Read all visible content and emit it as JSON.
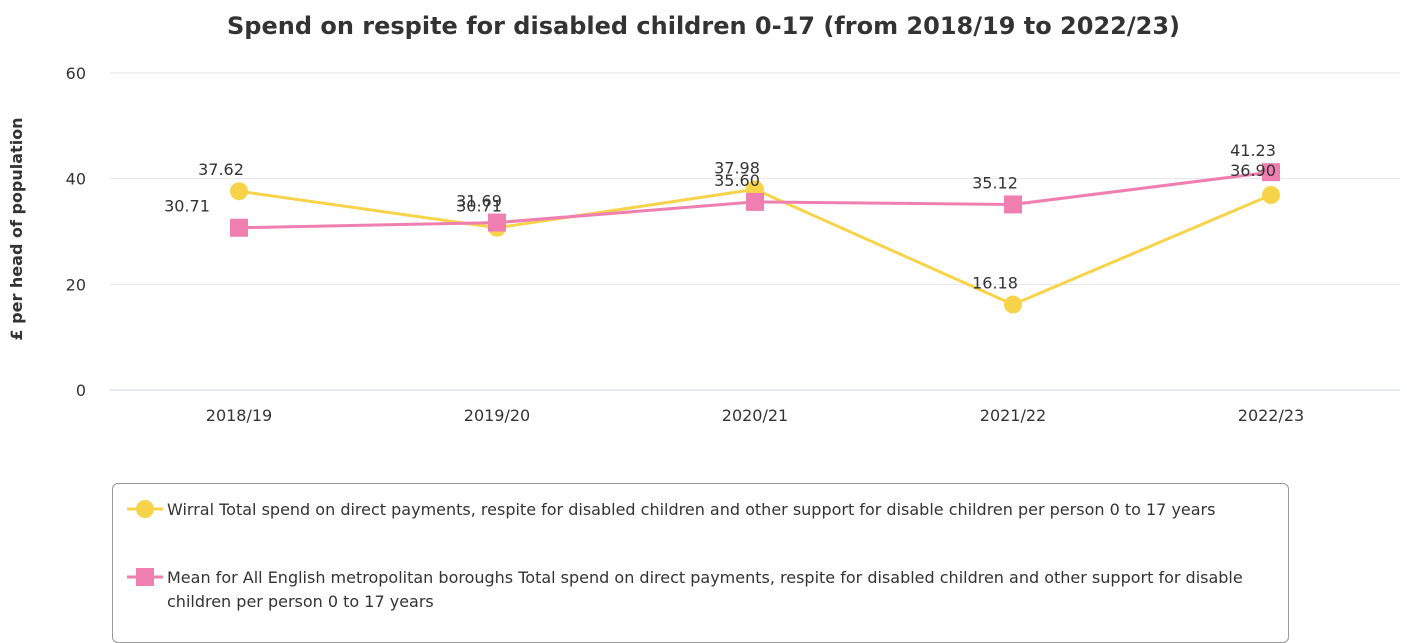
{
  "chart_data": {
    "type": "line",
    "title": "Spend on respite for disabled children 0-17 (from 2018/19 to 2022/23)",
    "ylabel": "£ per head of population",
    "xlabel": "",
    "categories": [
      "2018/19",
      "2019/20",
      "2020/21",
      "2021/22",
      "2022/23"
    ],
    "ylim": [
      0,
      60
    ],
    "yticks": [
      0,
      20,
      40,
      60
    ],
    "grid": true,
    "legend_position": "bottom",
    "series": [
      {
        "name": "Wirral Total spend on direct payments, respite for disabled children and other support for disable children per person 0 to 17 years",
        "marker": "circle",
        "color": "#f7d34a",
        "values": [
          37.62,
          30.71,
          37.98,
          16.18,
          36.9
        ],
        "labels": [
          "37.62",
          "30.71",
          "37.98",
          "16.18",
          "36.90"
        ]
      },
      {
        "name": "Mean for All English metropolitan boroughs Total spend on direct payments, respite for disabled children and other support for disable children per person 0 to 17 years",
        "marker": "square",
        "color": "#ee7fb0",
        "values": [
          30.71,
          31.69,
          35.6,
          35.12,
          41.23
        ],
        "labels": [
          "30.71",
          "31.69",
          "35.60",
          "35.12",
          "41.23"
        ]
      }
    ]
  }
}
